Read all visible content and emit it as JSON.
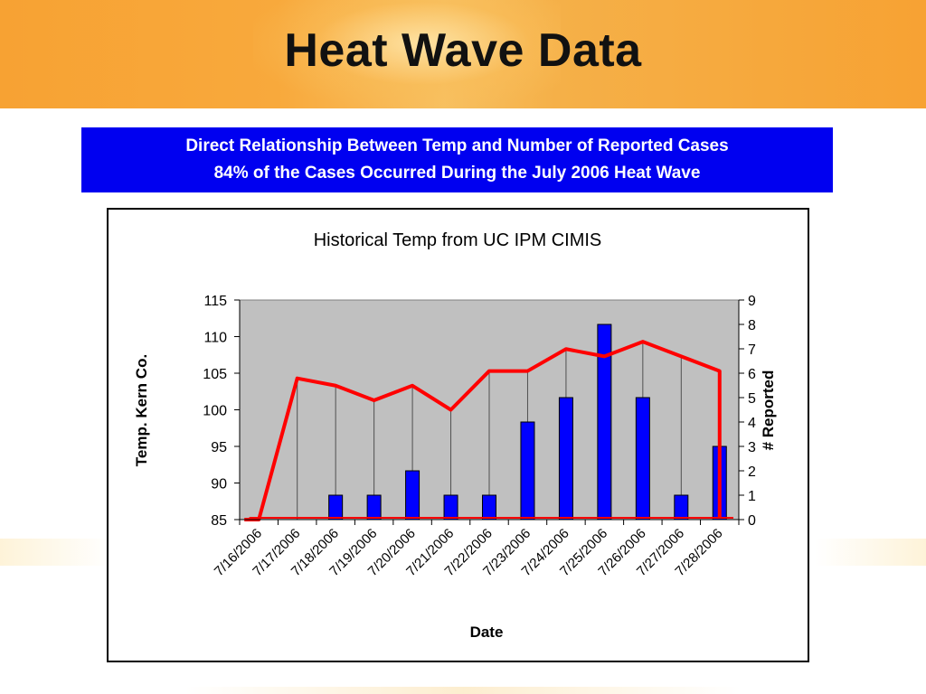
{
  "slide": {
    "title": "Heat Wave Data",
    "subtitle_line1": "Direct Relationship Between Temp and Number of Reported Cases",
    "subtitle_line2": "84% of the Cases Occurred During the July 2006 Heat Wave"
  },
  "colors": {
    "header_orange": "#f7a233",
    "subtitle_bg": "#0000f0",
    "plot_bg": "#c0c0c0",
    "bar_fill": "#0000ff",
    "line_color": "#ff0000"
  },
  "chart_data": {
    "type": "bar",
    "title": "Historical Temp  from UC IPM CIMIS",
    "xlabel": "Date",
    "ylabel": "Temp. Kern Co.",
    "y2label": "# Reported",
    "categories": [
      "7/16/2006",
      "7/17/2006",
      "7/18/2006",
      "7/19/2006",
      "7/20/2006",
      "7/21/2006",
      "7/22/2006",
      "7/23/2006",
      "7/24/2006",
      "7/25/2006",
      "7/26/2006",
      "7/27/2006",
      "7/28/2006"
    ],
    "ylim": [
      85,
      115
    ],
    "yticks": [
      115,
      110,
      105,
      100,
      95,
      90,
      85
    ],
    "y2lim": [
      0,
      9
    ],
    "y2ticks": [
      9,
      8,
      7,
      6,
      5,
      4,
      3,
      2,
      1,
      0
    ],
    "grid": false,
    "series": [
      {
        "kind": "line",
        "axis": "left",
        "values": [
          85,
          104.3,
          103.3,
          101.3,
          103.3,
          100,
          105.3,
          105.3,
          108.3,
          107.3,
          109.3,
          107.3,
          105.3
        ]
      },
      {
        "kind": "bar",
        "axis": "right",
        "values": [
          0,
          0,
          1,
          1,
          2,
          1,
          1,
          4,
          5,
          8,
          5,
          1,
          3
        ]
      }
    ]
  }
}
